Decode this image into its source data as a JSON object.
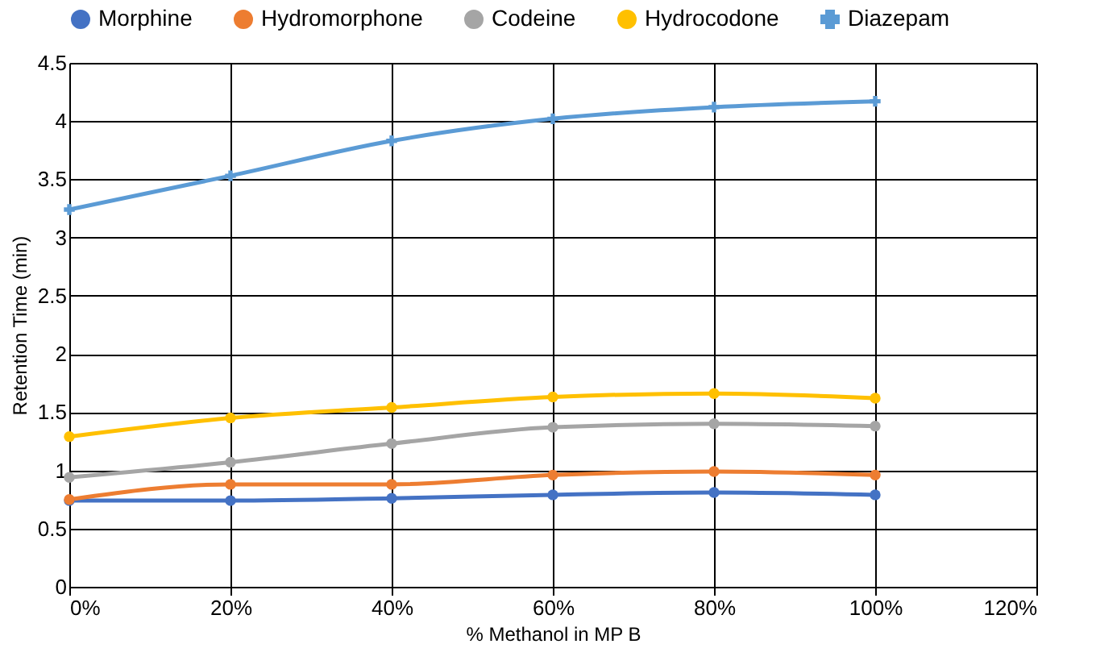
{
  "chart_data": {
    "type": "line",
    "xlabel": "% Methanol in MP B",
    "ylabel": "Retention Time (min)",
    "x": [
      0,
      20,
      40,
      60,
      80,
      100
    ],
    "xlim": [
      0,
      120
    ],
    "xticks": [
      {
        "value": 0,
        "label": "0%"
      },
      {
        "value": 20,
        "label": "20%"
      },
      {
        "value": 40,
        "label": "40%"
      },
      {
        "value": 60,
        "label": "60%"
      },
      {
        "value": 80,
        "label": "80%"
      },
      {
        "value": 100,
        "label": "100%"
      },
      {
        "value": 120,
        "label": "120%"
      }
    ],
    "ylim": [
      0,
      4.5
    ],
    "yticks": [
      0,
      0.5,
      1,
      1.5,
      2,
      2.5,
      3,
      3.5,
      4,
      4.5
    ],
    "grid": true,
    "legend": "top",
    "line_style": "solid",
    "series": [
      {
        "name": "Morphine",
        "color": "#4472c4",
        "marker": "circle",
        "values": [
          0.74,
          0.74,
          0.76,
          0.79,
          0.81,
          0.79
        ]
      },
      {
        "name": "Hydromorphone",
        "color": "#ed7d31",
        "marker": "circle",
        "values": [
          0.75,
          0.88,
          0.88,
          0.96,
          0.99,
          0.96
        ]
      },
      {
        "name": "Codeine",
        "color": "#a5a5a5",
        "marker": "circle",
        "values": [
          0.94,
          1.07,
          1.23,
          1.37,
          1.4,
          1.38
        ]
      },
      {
        "name": "Hydrocodone",
        "color": "#ffc000",
        "marker": "circle",
        "values": [
          1.29,
          1.45,
          1.54,
          1.63,
          1.66,
          1.62
        ]
      },
      {
        "name": "Diazepam",
        "color": "#5b9bd5",
        "marker": "cross",
        "values": [
          3.24,
          3.53,
          3.83,
          4.02,
          4.12,
          4.17
        ]
      }
    ]
  }
}
